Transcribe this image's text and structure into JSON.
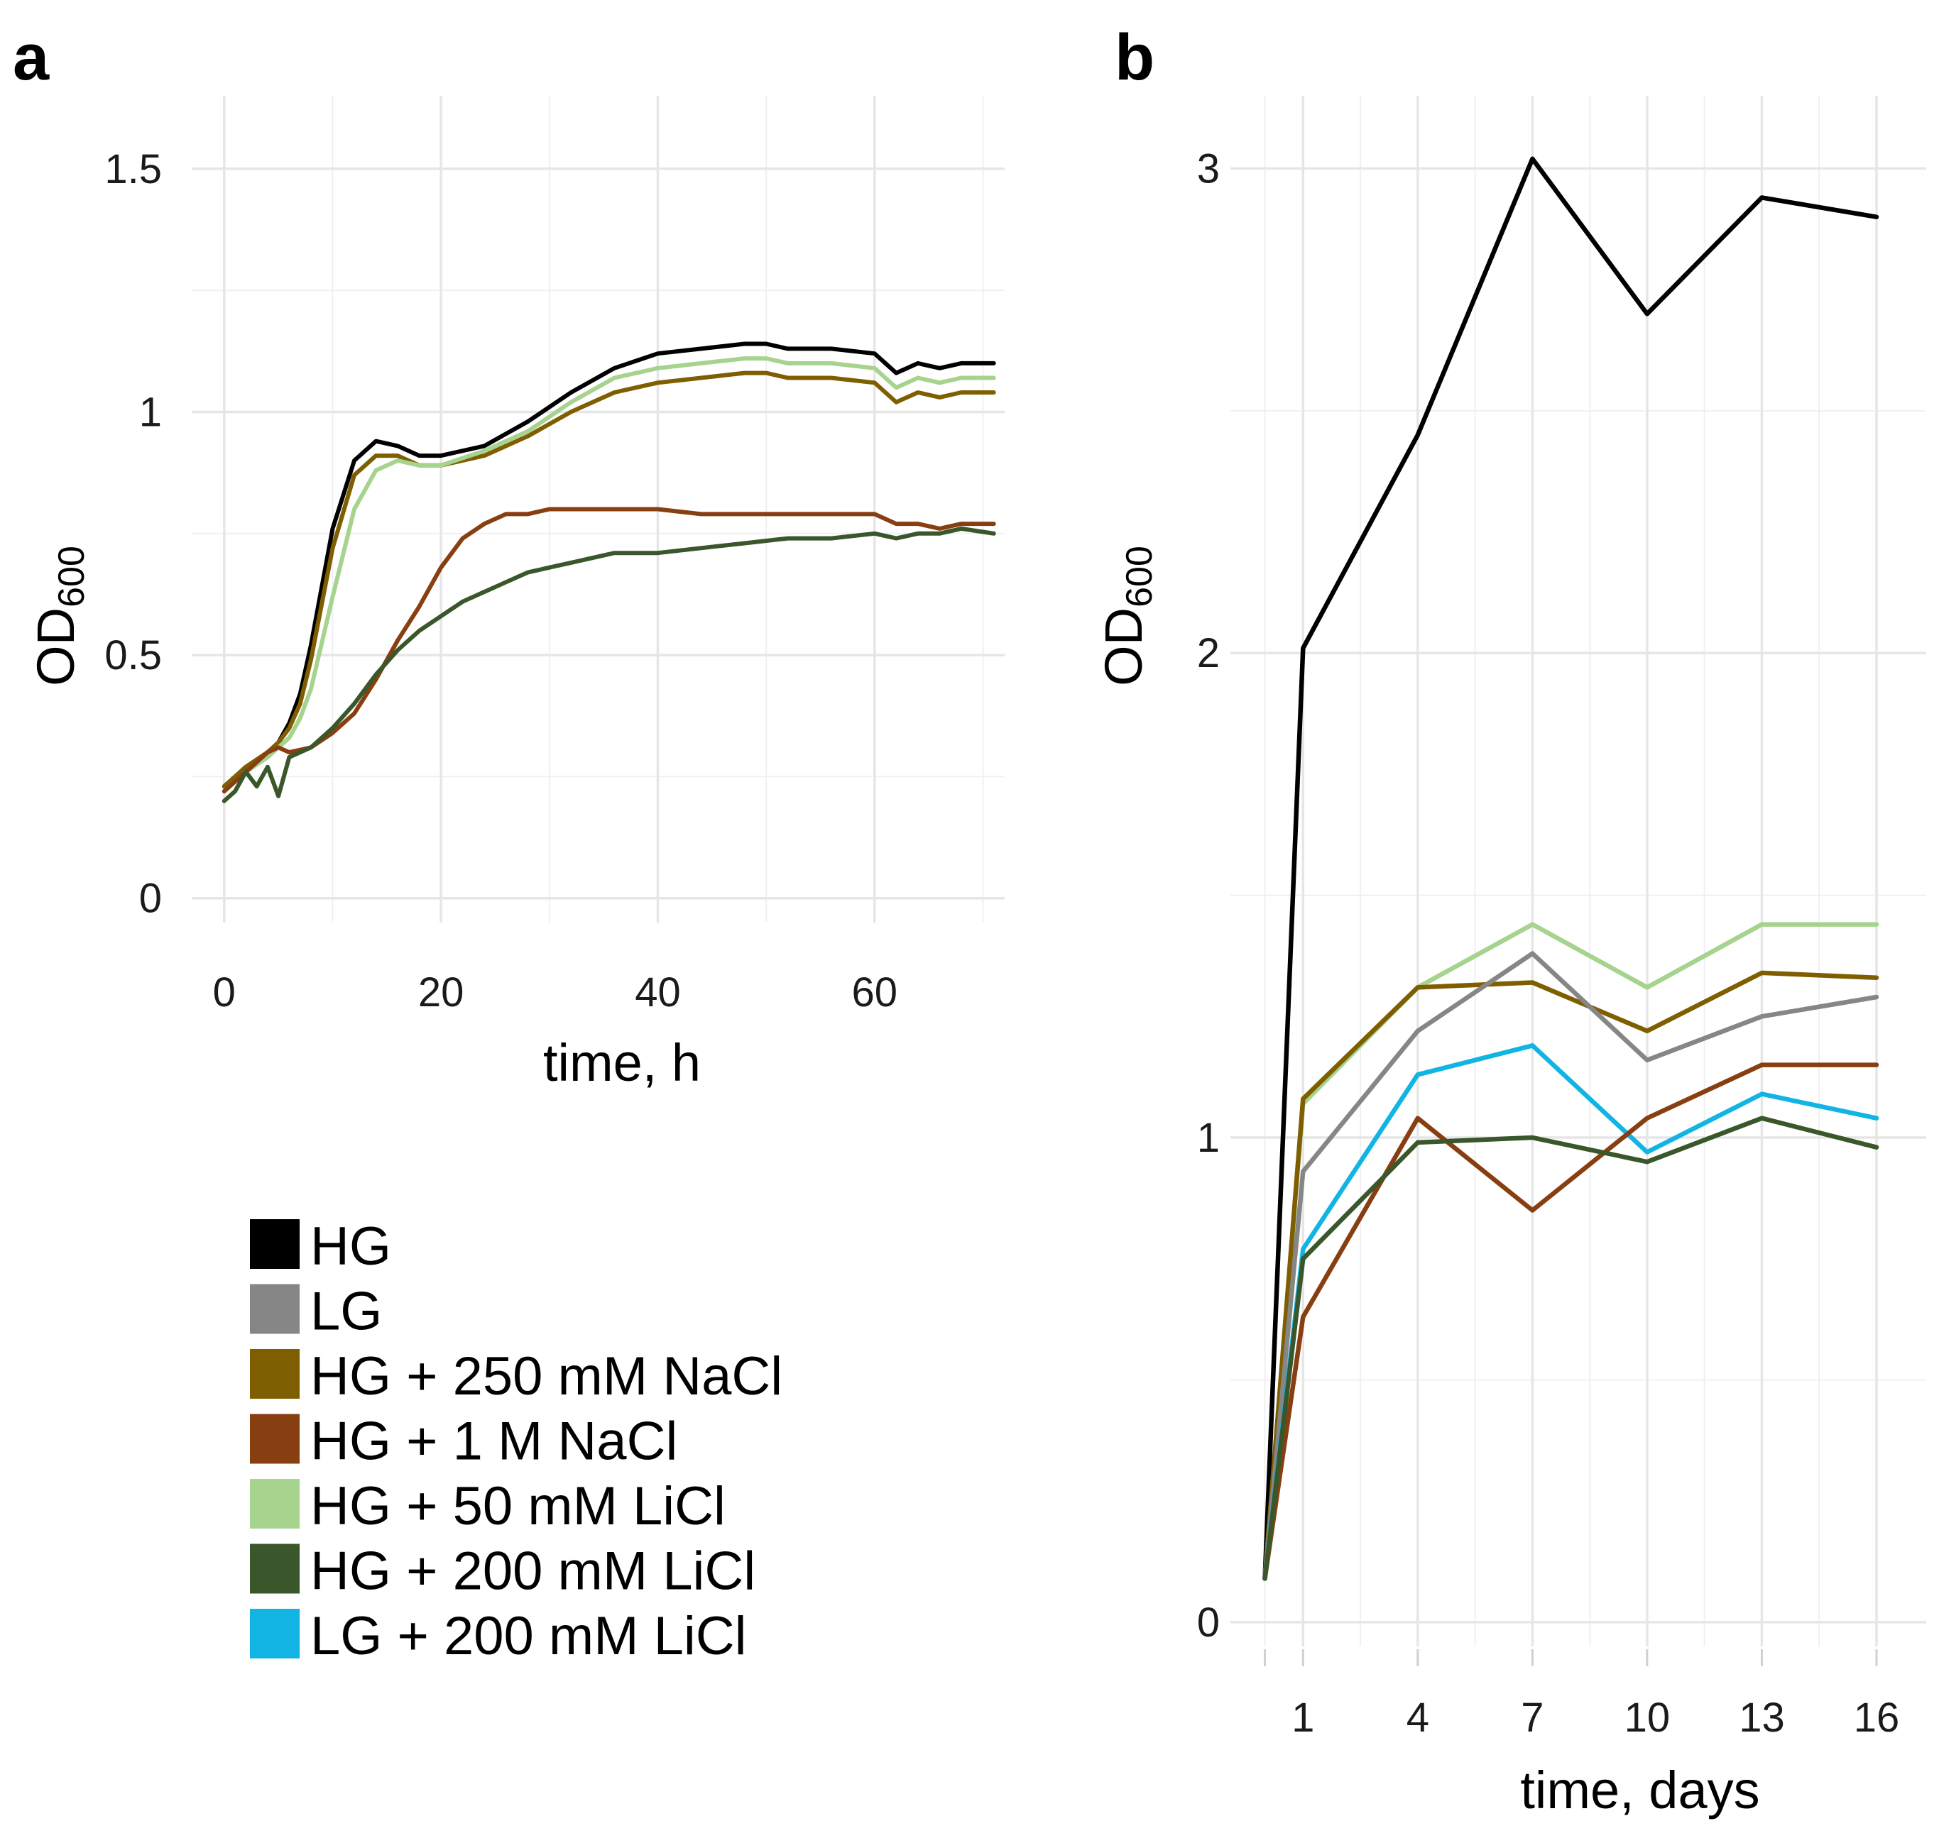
{
  "panels": {
    "a": "a",
    "b": "b"
  },
  "series": [
    {
      "key": "HG",
      "label": "HG",
      "color": "#000000"
    },
    {
      "key": "LG",
      "label": "LG",
      "color": "#868686"
    },
    {
      "key": "HG_NaCl250",
      "label": "HG + 250 mM NaCl",
      "color": "#7e5e00"
    },
    {
      "key": "HG_NaCl1M",
      "label": "HG + 1 M NaCl",
      "color": "#873f12"
    },
    {
      "key": "HG_LiCl50",
      "label": "HG + 50 mM LiCl",
      "color": "#a6d38e"
    },
    {
      "key": "HG_LiCl200",
      "label": "HG + 200 mM LiCl",
      "color": "#39572b"
    },
    {
      "key": "LG_LiCl200",
      "label": "LG + 200 mM LiCl",
      "color": "#12b4e4"
    }
  ],
  "chart_data": [
    {
      "id": "a",
      "type": "line",
      "xlabel": "time, h",
      "ylabel": "OD",
      "ylabel_sub": "600",
      "xlim": [
        -3,
        72
      ],
      "ylim": [
        -0.05,
        1.65
      ],
      "xticks": [
        0,
        20,
        40,
        60
      ],
      "xtick_labels": [
        "0",
        "20",
        "40",
        "60"
      ],
      "yticks": [
        0,
        0.5,
        1,
        1.5
      ],
      "ytick_labels": [
        "0",
        "0.5",
        "1",
        "1.5"
      ],
      "series": [
        {
          "key": "HG",
          "x": [
            0,
            2,
            4,
            5,
            6,
            7,
            8,
            10,
            12,
            14,
            16,
            18,
            20,
            24,
            28,
            32,
            36,
            40,
            44,
            48,
            50,
            52,
            56,
            60,
            62,
            64,
            66,
            68,
            71
          ],
          "values": [
            0.23,
            0.27,
            0.3,
            0.32,
            0.36,
            0.42,
            0.52,
            0.76,
            0.9,
            0.94,
            0.93,
            0.91,
            0.91,
            0.93,
            0.98,
            1.04,
            1.09,
            1.12,
            1.13,
            1.14,
            1.14,
            1.13,
            1.13,
            1.12,
            1.08,
            1.1,
            1.09,
            1.1,
            1.1
          ]
        },
        {
          "key": "HG_NaCl250",
          "x": [
            0,
            2,
            4,
            5,
            6,
            7,
            8,
            10,
            12,
            14,
            16,
            18,
            20,
            24,
            28,
            32,
            36,
            40,
            44,
            48,
            50,
            52,
            56,
            60,
            62,
            64,
            66,
            68,
            71
          ],
          "values": [
            0.23,
            0.27,
            0.3,
            0.32,
            0.35,
            0.4,
            0.49,
            0.72,
            0.87,
            0.91,
            0.91,
            0.89,
            0.89,
            0.91,
            0.95,
            1.0,
            1.04,
            1.06,
            1.07,
            1.08,
            1.08,
            1.07,
            1.07,
            1.06,
            1.02,
            1.04,
            1.03,
            1.04,
            1.04
          ]
        },
        {
          "key": "HG_LiCl50",
          "x": [
            0,
            2,
            4,
            5,
            6,
            7,
            8,
            10,
            12,
            14,
            16,
            18,
            20,
            24,
            28,
            32,
            36,
            40,
            44,
            48,
            50,
            52,
            56,
            60,
            62,
            64,
            66,
            68,
            71
          ],
          "values": [
            0.22,
            0.26,
            0.29,
            0.31,
            0.33,
            0.37,
            0.43,
            0.62,
            0.8,
            0.88,
            0.9,
            0.89,
            0.89,
            0.92,
            0.96,
            1.02,
            1.07,
            1.09,
            1.1,
            1.11,
            1.11,
            1.1,
            1.1,
            1.09,
            1.05,
            1.07,
            1.06,
            1.07,
            1.07
          ]
        },
        {
          "key": "HG_NaCl1M",
          "x": [
            0,
            2,
            4,
            5,
            6,
            8,
            10,
            12,
            14,
            16,
            18,
            20,
            22,
            24,
            26,
            28,
            30,
            32,
            36,
            40,
            44,
            48,
            52,
            56,
            60,
            62,
            64,
            66,
            68,
            71
          ],
          "values": [
            0.22,
            0.26,
            0.3,
            0.31,
            0.3,
            0.31,
            0.34,
            0.38,
            0.45,
            0.53,
            0.6,
            0.68,
            0.74,
            0.77,
            0.79,
            0.79,
            0.8,
            0.8,
            0.8,
            0.8,
            0.79,
            0.79,
            0.79,
            0.79,
            0.79,
            0.77,
            0.77,
            0.76,
            0.77,
            0.77
          ]
        },
        {
          "key": "HG_LiCl200",
          "x": [
            0,
            1,
            2,
            3,
            4,
            5,
            6,
            8,
            10,
            12,
            14,
            16,
            18,
            20,
            22,
            24,
            26,
            28,
            30,
            32,
            36,
            40,
            44,
            48,
            52,
            56,
            60,
            62,
            64,
            66,
            68,
            71
          ],
          "values": [
            0.2,
            0.22,
            0.26,
            0.23,
            0.27,
            0.21,
            0.29,
            0.31,
            0.35,
            0.4,
            0.46,
            0.51,
            0.55,
            0.58,
            0.61,
            0.63,
            0.65,
            0.67,
            0.68,
            0.69,
            0.71,
            0.71,
            0.72,
            0.73,
            0.74,
            0.74,
            0.75,
            0.74,
            0.75,
            0.75,
            0.76,
            0.75
          ]
        }
      ]
    },
    {
      "id": "b",
      "type": "line",
      "xlabel": "time, days",
      "ylabel": "OD",
      "ylabel_sub": "600",
      "xlim": [
        -0.9,
        17.3
      ],
      "ylim": [
        -0.05,
        3.15
      ],
      "xticks": [
        1,
        4,
        7,
        10,
        13,
        16
      ],
      "xtick_labels": [
        "1",
        "4",
        "7",
        "10",
        "13",
        "16"
      ],
      "yticks": [
        0,
        1,
        2,
        3
      ],
      "ytick_labels": [
        "0",
        "1",
        "2",
        "3"
      ],
      "x": [
        0,
        1,
        4,
        7,
        10,
        13,
        16
      ],
      "series": [
        {
          "key": "HG",
          "values": [
            0.09,
            2.01,
            2.45,
            3.02,
            2.7,
            2.94,
            2.9
          ]
        },
        {
          "key": "HG_LiCl50",
          "values": [
            0.09,
            1.07,
            1.31,
            1.44,
            1.31,
            1.44,
            1.44
          ]
        },
        {
          "key": "HG_NaCl250",
          "values": [
            0.09,
            1.08,
            1.31,
            1.32,
            1.22,
            1.34,
            1.33
          ]
        },
        {
          "key": "LG",
          "values": [
            0.09,
            0.93,
            1.22,
            1.38,
            1.16,
            1.25,
            1.29
          ]
        },
        {
          "key": "LG_LiCl200",
          "values": [
            0.09,
            0.77,
            1.13,
            1.19,
            0.97,
            1.09,
            1.04
          ]
        },
        {
          "key": "HG_NaCl1M",
          "values": [
            0.09,
            0.63,
            1.04,
            0.85,
            1.04,
            1.15,
            1.15
          ]
        },
        {
          "key": "HG_LiCl200",
          "values": [
            0.09,
            0.75,
            0.99,
            1.0,
            0.95,
            1.04,
            0.98
          ]
        }
      ]
    }
  ]
}
